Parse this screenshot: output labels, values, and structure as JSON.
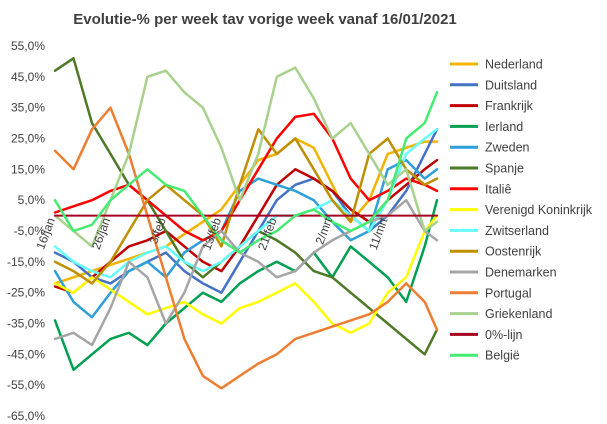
{
  "chart_data": {
    "type": "line",
    "title": "Evolutie-% per week tav vorige week vanaf 16/01/2021",
    "xlabel": "",
    "ylabel": "",
    "ylim": [
      -65,
      55
    ],
    "y_ticks": [
      "55,0%",
      "45,0%",
      "35,0%",
      "25,0%",
      "15,0%",
      "5,0%",
      "-5,0%",
      "-15,0%",
      "-25,0%",
      "-35,0%",
      "-45,0%",
      "-55,0%",
      "-65,0%"
    ],
    "x_ticks": [
      "16/jan",
      "26/jan",
      "3/feb",
      "13/feb",
      "21/feb",
      "2/mrt",
      "11/mrt"
    ],
    "x_tick_days": [
      0,
      9,
      18,
      27,
      36,
      45,
      54
    ],
    "x_max_day": 62,
    "grid": false,
    "legend_position": "right",
    "series": [
      {
        "name": "Nederland",
        "color": "#f2b400",
        "x": [
          0,
          3,
          6,
          9,
          12,
          15,
          18,
          21,
          24,
          27,
          30,
          33,
          36,
          39,
          42,
          45,
          48,
          51,
          54,
          57,
          60,
          62
        ],
        "values": [
          -22,
          -20,
          -18,
          -16,
          -14,
          -12,
          -10,
          -6,
          -2,
          2,
          10,
          18,
          20,
          25,
          22,
          10,
          -2,
          5,
          20,
          22,
          24,
          24
        ]
      },
      {
        "name": "Duitsland",
        "color": "#4472c4",
        "x": [
          0,
          3,
          6,
          9,
          12,
          15,
          18,
          21,
          24,
          27,
          30,
          33,
          36,
          39,
          42,
          45,
          48,
          51,
          54,
          57,
          60,
          62
        ],
        "values": [
          -12,
          -15,
          -20,
          -22,
          -18,
          -15,
          -12,
          -18,
          -22,
          -25,
          -15,
          -5,
          5,
          10,
          12,
          8,
          0,
          -5,
          0,
          8,
          20,
          28
        ]
      },
      {
        "name": "Frankrijk",
        "color": "#c00000",
        "x": [
          0,
          3,
          6,
          9,
          12,
          15,
          18,
          21,
          24,
          27,
          30,
          33,
          36,
          39,
          42,
          45,
          48,
          51,
          54,
          57,
          60,
          62
        ],
        "values": [
          -23,
          -25,
          -20,
          -15,
          -10,
          -8,
          -5,
          -10,
          -15,
          -18,
          -10,
          0,
          10,
          15,
          12,
          8,
          2,
          -2,
          5,
          10,
          15,
          18
        ]
      },
      {
        "name": "Ierland",
        "color": "#00a050",
        "x": [
          0,
          3,
          6,
          9,
          12,
          15,
          18,
          21,
          24,
          27,
          30,
          33,
          36,
          39,
          42,
          45,
          48,
          51,
          54,
          57,
          60,
          62
        ],
        "values": [
          -34,
          -50,
          -45,
          -40,
          -38,
          -42,
          -35,
          -30,
          -25,
          -28,
          -22,
          -18,
          -15,
          -18,
          -12,
          -20,
          -10,
          -15,
          -20,
          -28,
          -10,
          5
        ]
      },
      {
        "name": "Zweden",
        "color": "#2e9fd8",
        "x": [
          0,
          3,
          6,
          9,
          12,
          15,
          18,
          21,
          24,
          27,
          30,
          33,
          36,
          39,
          42,
          45,
          48,
          51,
          54,
          57,
          60,
          62
        ],
        "values": [
          -18,
          -28,
          -33,
          -25,
          -18,
          -15,
          -20,
          -12,
          -8,
          -5,
          8,
          12,
          10,
          8,
          5,
          -2,
          -8,
          -5,
          15,
          18,
          12,
          15
        ]
      },
      {
        "name": "Spanje",
        "color": "#4e7a28",
        "x": [
          0,
          3,
          6,
          9,
          12,
          15,
          18,
          21,
          24,
          27,
          30,
          33,
          36,
          39,
          42,
          45,
          48,
          51,
          54,
          57,
          60,
          62
        ],
        "values": [
          47,
          51,
          30,
          20,
          10,
          5,
          -5,
          -15,
          -20,
          -15,
          -10,
          -5,
          -8,
          -12,
          -18,
          -20,
          -25,
          -30,
          -35,
          -40,
          -45,
          -37
        ]
      },
      {
        "name": "Italiê",
        "color": "#ff0000",
        "x": [
          0,
          3,
          6,
          9,
          12,
          15,
          18,
          21,
          24,
          27,
          30,
          33,
          36,
          39,
          42,
          45,
          48,
          51,
          54,
          57,
          60,
          62
        ],
        "values": [
          1,
          3,
          5,
          8,
          10,
          5,
          0,
          -5,
          -8,
          -5,
          5,
          15,
          25,
          32,
          33,
          25,
          12,
          5,
          8,
          12,
          10,
          8
        ]
      },
      {
        "name": "Verenigd Koninkrijk",
        "color": "#ffff00",
        "x": [
          0,
          3,
          6,
          9,
          12,
          15,
          18,
          21,
          24,
          27,
          30,
          33,
          36,
          39,
          42,
          45,
          48,
          51,
          54,
          57,
          60,
          62
        ],
        "values": [
          -22,
          -25,
          -20,
          -24,
          -28,
          -32,
          -30,
          -28,
          -32,
          -35,
          -30,
          -28,
          -25,
          -22,
          -28,
          -35,
          -38,
          -35,
          -25,
          -20,
          -5,
          0
        ]
      },
      {
        "name": "Zwitserland",
        "color": "#66ffff",
        "x": [
          0,
          3,
          6,
          9,
          12,
          15,
          18,
          21,
          24,
          27,
          30,
          33,
          36,
          39,
          42,
          45,
          48,
          51,
          54,
          57,
          60,
          62
        ],
        "values": [
          -10,
          -15,
          -18,
          -20,
          -15,
          -12,
          -10,
          -15,
          -18,
          -15,
          -10,
          -5,
          0,
          0,
          2,
          5,
          0,
          -5,
          5,
          20,
          25,
          28
        ]
      },
      {
        "name": "Oostenrijk",
        "color": "#bf8f00",
        "x": [
          0,
          3,
          6,
          9,
          12,
          15,
          18,
          21,
          24,
          27,
          30,
          33,
          36,
          39,
          42,
          45,
          48,
          51,
          54,
          57,
          60,
          62
        ],
        "values": [
          -15,
          -18,
          -22,
          -15,
          -5,
          5,
          10,
          5,
          0,
          -10,
          10,
          28,
          20,
          25,
          15,
          5,
          -2,
          20,
          25,
          15,
          10,
          12
        ]
      },
      {
        "name": "Denemarken",
        "color": "#a5a5a5",
        "x": [
          0,
          3,
          6,
          9,
          12,
          15,
          18,
          21,
          24,
          27,
          30,
          33,
          36,
          39,
          42,
          45,
          48,
          51,
          54,
          57,
          60,
          62
        ],
        "values": [
          -40,
          -38,
          -42,
          -30,
          -15,
          -20,
          -35,
          -25,
          -10,
          -5,
          -12,
          -15,
          -20,
          -18,
          -12,
          -8,
          -5,
          -2,
          0,
          5,
          -5,
          -8
        ]
      },
      {
        "name": "Portugal",
        "color": "#ed7d31",
        "x": [
          0,
          3,
          6,
          9,
          12,
          15,
          18,
          21,
          24,
          27,
          30,
          33,
          36,
          39,
          42,
          45,
          48,
          51,
          54,
          57,
          60,
          62
        ],
        "values": [
          21,
          15,
          28,
          35,
          20,
          0,
          -20,
          -40,
          -52,
          -56,
          -52,
          -48,
          -45,
          -40,
          -38,
          -36,
          -34,
          -32,
          -28,
          -22,
          -28,
          -37
        ]
      },
      {
        "name": "Griekenland",
        "color": "#a9d18e",
        "x": [
          0,
          3,
          6,
          9,
          12,
          15,
          18,
          21,
          24,
          27,
          30,
          33,
          36,
          39,
          42,
          45,
          48,
          51,
          54,
          57,
          60,
          62
        ],
        "values": [
          0,
          -5,
          -10,
          5,
          20,
          45,
          47,
          40,
          35,
          22,
          5,
          20,
          45,
          48,
          38,
          25,
          30,
          20,
          10,
          15,
          -5,
          -2
        ]
      },
      {
        "name": "0%-lijn",
        "color": "#a50021",
        "x": [
          0,
          62
        ],
        "values": [
          0,
          0
        ]
      },
      {
        "name": "België",
        "color": "#46eb71",
        "x": [
          0,
          3,
          6,
          9,
          12,
          15,
          18,
          21,
          24,
          27,
          30,
          33,
          36,
          39,
          42,
          45,
          48,
          51,
          54,
          57,
          60,
          62
        ],
        "values": [
          5,
          -5,
          -3,
          5,
          10,
          15,
          10,
          8,
          0,
          -8,
          -12,
          -8,
          -5,
          0,
          2,
          -2,
          -5,
          -2,
          5,
          25,
          30,
          40
        ]
      }
    ]
  }
}
